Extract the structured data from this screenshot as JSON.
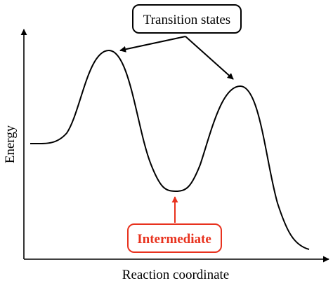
{
  "diagram": {
    "axes": {
      "y_label": "Energy",
      "x_label": "Reaction coordinate"
    },
    "callouts": {
      "transition_states": "Transition states",
      "intermediate": "Intermediate"
    },
    "colors": {
      "curve": "#000000",
      "intermediate_accent": "#e8321e"
    }
  }
}
